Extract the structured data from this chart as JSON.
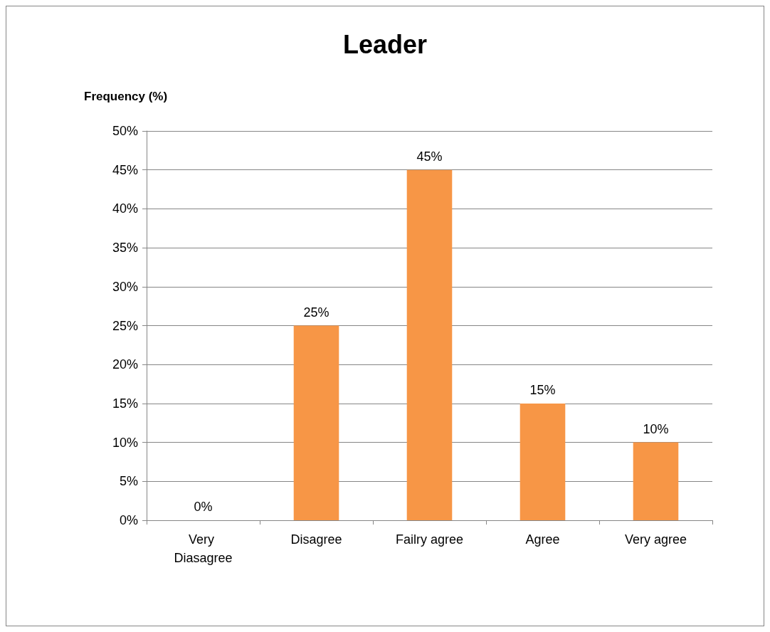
{
  "chart_data": {
    "type": "bar",
    "title": "Leader",
    "ylabel": "Frequency (%)",
    "categories": [
      "Very Diasagree",
      "Disagree",
      "Failry agree",
      "Agree",
      "Very agree"
    ],
    "values": [
      0,
      25,
      45,
      15,
      10
    ],
    "color": "#f79646",
    "value_labels": [
      "0%",
      "25%",
      "45%",
      "15%",
      "10%"
    ],
    "ylim": [
      0,
      50
    ],
    "yticks": [
      {
        "value": 0,
        "label": "0%"
      },
      {
        "value": 5,
        "label": "5%"
      },
      {
        "value": 10,
        "label": "10%"
      },
      {
        "value": 15,
        "label": "15%"
      },
      {
        "value": 20,
        "label": "20%"
      },
      {
        "value": 25,
        "label": "25%"
      },
      {
        "value": 30,
        "label": "30%"
      },
      {
        "value": 35,
        "label": "35%"
      },
      {
        "value": 40,
        "label": "40%"
      },
      {
        "value": 45,
        "label": "45%"
      },
      {
        "value": 50,
        "label": "50%"
      }
    ],
    "grid": "y"
  }
}
